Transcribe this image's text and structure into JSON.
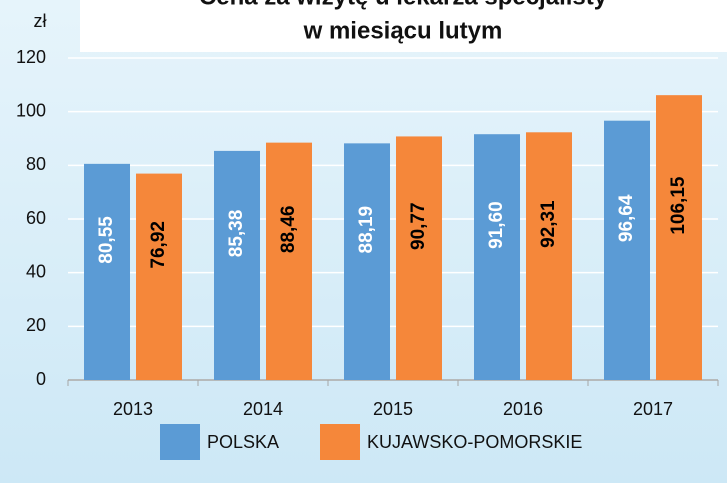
{
  "chart_data": {
    "type": "bar",
    "title": [
      "Cena za wizytę u lekarza specjalisty",
      "w miesiącu lutym"
    ],
    "y_label": "zł",
    "categories": [
      "2013",
      "2014",
      "2015",
      "2016",
      "2017"
    ],
    "series": [
      {
        "name": "POLSKA",
        "color": "#5b9bd5",
        "values": [
          80.55,
          85.38,
          88.19,
          91.6,
          96.64
        ],
        "value_labels": [
          "80,55",
          "85,38",
          "88,19",
          "91,60",
          "96,64"
        ]
      },
      {
        "name": "KUJAWSKO-POMORSKIE",
        "color": "#f5873a",
        "values": [
          76.92,
          88.46,
          90.77,
          92.31,
          106.15
        ],
        "value_labels": [
          "76,92",
          "88,46",
          "90,77",
          "92,31",
          "106,15"
        ]
      }
    ],
    "ylim": [
      0,
      120
    ],
    "yticks": [
      0,
      20,
      40,
      60,
      80,
      100,
      120
    ],
    "grid": true,
    "legend": "bottom"
  }
}
